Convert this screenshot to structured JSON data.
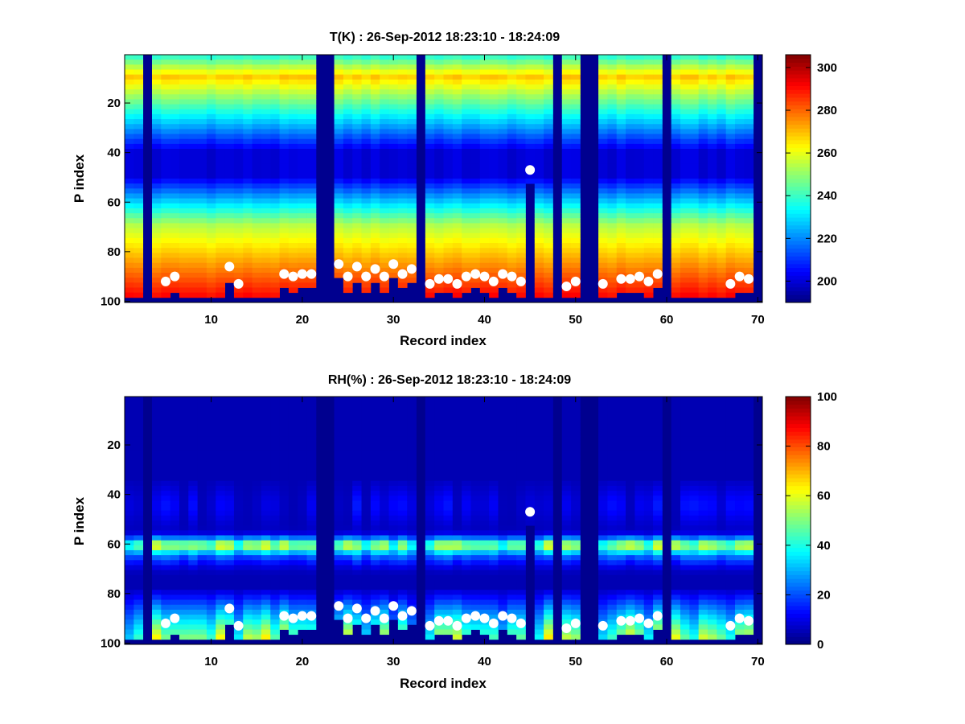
{
  "chart_data": [
    {
      "type": "heatmap",
      "title": "T(K) : 26-Sep-2012 18:23:10 - 18:24:09",
      "xlabel": "Record index",
      "ylabel": "P index",
      "xlim": [
        0.5,
        70.5
      ],
      "ylim": [
        0.5,
        100.5
      ],
      "y_reversed": true,
      "xticks": [
        10,
        20,
        30,
        40,
        50,
        60,
        70
      ],
      "yticks": [
        20,
        40,
        60,
        80,
        100
      ],
      "colormap": "jet",
      "clim": [
        190,
        306
      ],
      "colorbar_ticks": [
        200,
        220,
        240,
        260,
        280,
        300
      ],
      "missing_records": [
        3,
        22,
        23,
        33,
        48,
        51,
        52,
        60,
        70
      ],
      "surface_markers": {
        "x": [
          5,
          6,
          12,
          13,
          18,
          19,
          20,
          21,
          24,
          25,
          26,
          27,
          28,
          29,
          30,
          31,
          32,
          34,
          35,
          36,
          37,
          38,
          39,
          40,
          41,
          42,
          43,
          44,
          45,
          49,
          50,
          53,
          55,
          56,
          57,
          58,
          59,
          67,
          68,
          69
        ],
        "y": [
          92,
          90,
          86,
          93,
          89,
          90,
          89,
          89,
          85,
          90,
          86,
          90,
          87,
          90,
          85,
          89,
          87,
          93,
          91,
          91,
          93,
          90,
          89,
          90,
          92,
          89,
          90,
          92,
          47,
          94,
          92,
          93,
          91,
          91,
          90,
          92,
          89,
          93,
          90,
          91
        ]
      }
    },
    {
      "type": "heatmap",
      "title": "RH(%) : 26-Sep-2012 18:23:10 - 18:24:09",
      "xlabel": "Record index",
      "ylabel": "P index",
      "xlim": [
        0.5,
        70.5
      ],
      "ylim": [
        0.5,
        100.5
      ],
      "y_reversed": true,
      "xticks": [
        10,
        20,
        30,
        40,
        50,
        60,
        70
      ],
      "yticks": [
        20,
        40,
        60,
        80,
        100
      ],
      "colormap": "jet",
      "clim": [
        0,
        100
      ],
      "colorbar_ticks": [
        0,
        20,
        40,
        60,
        80,
        100
      ],
      "missing_records": [
        3,
        22,
        23,
        33,
        48,
        51,
        52,
        60,
        70
      ],
      "surface_markers": {
        "x": [
          5,
          6,
          12,
          13,
          18,
          19,
          20,
          21,
          24,
          25,
          26,
          27,
          28,
          29,
          30,
          31,
          32,
          34,
          35,
          36,
          37,
          38,
          39,
          40,
          41,
          42,
          43,
          44,
          45,
          49,
          50,
          53,
          55,
          56,
          57,
          58,
          59,
          67,
          68,
          69
        ],
        "y": [
          92,
          90,
          86,
          93,
          89,
          90,
          89,
          89,
          85,
          90,
          86,
          90,
          87,
          90,
          85,
          89,
          87,
          93,
          91,
          91,
          93,
          90,
          89,
          90,
          92,
          89,
          90,
          92,
          47,
          94,
          92,
          93,
          91,
          91,
          90,
          92,
          89,
          93,
          90,
          91
        ]
      }
    }
  ]
}
